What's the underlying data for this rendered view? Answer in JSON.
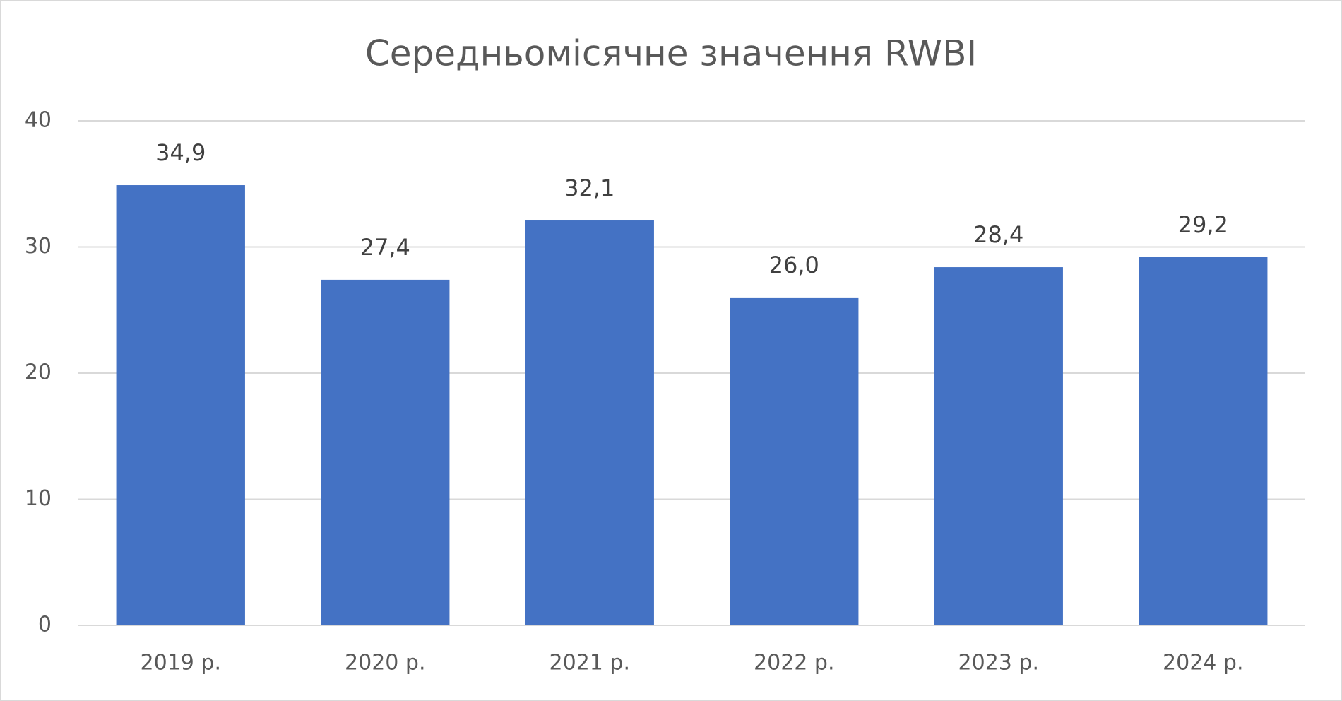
{
  "chart_data": {
    "type": "bar",
    "title": "Середньомісячне значення RWBI",
    "categories": [
      "2019 р.",
      "2020 р.",
      "2021 р.",
      "2022 р.",
      "2023 р.",
      "2024 р."
    ],
    "values": [
      34.9,
      27.4,
      32.1,
      26.0,
      28.4,
      29.2
    ],
    "value_labels": [
      "34,9",
      "27,4",
      "32,1",
      "26,0",
      "28,4",
      "29,2"
    ],
    "color": "#4472c4",
    "ylim": [
      0,
      40
    ],
    "yticks": [
      0,
      10,
      20,
      30,
      40
    ],
    "grid": true
  }
}
